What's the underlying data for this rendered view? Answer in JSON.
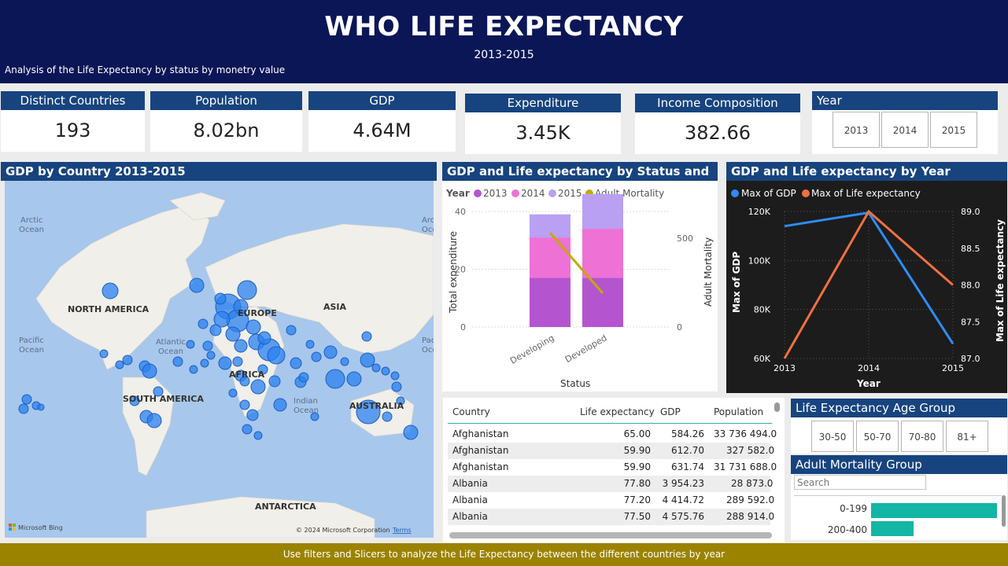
{
  "header": {
    "title": "WHO LIFE EXPECTANCY",
    "years": "2013-2015",
    "subtitle": "Analysis of the Life Expectancy by status by monetry value"
  },
  "kpis": [
    {
      "label": "Distinct Countries",
      "value": "193"
    },
    {
      "label": "Population",
      "value": "8.02bn"
    },
    {
      "label": "GDP",
      "value": "4.64M"
    },
    {
      "label": "Expenditure",
      "value": "3.45K"
    },
    {
      "label": "Income Composition",
      "value": "382.66"
    }
  ],
  "year_slicer": {
    "title": "Year",
    "options": [
      "2013",
      "2014",
      "2015"
    ]
  },
  "map": {
    "title": "GDP by Country 2013-2015",
    "labels": {
      "north_america": "NORTH AMERICA",
      "south_america": "SOUTH AMERICA",
      "europe": "EUROPE",
      "asia": "ASIA",
      "africa": "AFRICA",
      "australia": "AUSTRALIA",
      "antarctica": "ANTARCTICA",
      "arctic": "Arctic",
      "ocean": "Ocean",
      "pacific": "Pacific",
      "atlantic": "Atlantic",
      "indian": "Indian"
    },
    "attribution": "© 2024 Microsoft Corporation",
    "terms": "Terms",
    "bing": "Microsoft Bing"
  },
  "chart_status": {
    "title": "GDP and Life expectancy by Status and Year",
    "legend_title": "Year",
    "legend": [
      "2013",
      "2014",
      "2015",
      "Adult Mortality"
    ],
    "colors": [
      "#b455cf",
      "#ee71d6",
      "#b9a0f2",
      "#c4a90b"
    ],
    "xlabel": "Status",
    "ylabel_left": "Total expenditure",
    "ylabel_right": "Adult Mortality",
    "y_left_ticks": [
      "0",
      "20",
      "40"
    ],
    "y_right_ticks": [
      "0",
      "500"
    ]
  },
  "chart_year": {
    "title": "GDP and Life expectancy by Year",
    "legend": [
      "Max of GDP",
      "Max of Life expectancy"
    ],
    "colors": [
      "#2e8cf5",
      "#f07040"
    ],
    "xlabel": "Year",
    "ylabel_left": "Max of GDP",
    "ylabel_right": "Max of Life expectancy",
    "y_left_ticks": [
      "60K",
      "80K",
      "100K",
      "120K"
    ],
    "y_right_ticks": [
      "87.0",
      "87.5",
      "88.0",
      "88.5",
      "89.0"
    ],
    "x_ticks": [
      "2013",
      "2014",
      "2015"
    ]
  },
  "table": {
    "headers": [
      "Country",
      "Life expectancy",
      "GDP",
      "Population"
    ],
    "rows": [
      [
        "Afghanistan",
        "65.00",
        "584.26",
        "33 736 494.0"
      ],
      [
        "Afghanistan",
        "59.90",
        "612.70",
        "327 582.0"
      ],
      [
        "Afghanistan",
        "59.90",
        "631.74",
        "31 731 688.0"
      ],
      [
        "Albania",
        "77.80",
        "3 954.23",
        "28 873.0"
      ],
      [
        "Albania",
        "77.20",
        "4 414.72",
        "289 592.0"
      ],
      [
        "Albania",
        "77.50",
        "4 575.76",
        "288 914.0"
      ]
    ]
  },
  "age_group": {
    "title": "Life Expectancy Age Group",
    "options": [
      "30-50",
      "50-70",
      "70-80",
      "81+"
    ]
  },
  "mortality_group": {
    "title": "Adult Mortality Group",
    "search_placeholder": "Search",
    "bars": [
      {
        "label": "0-199",
        "value": 1.0
      },
      {
        "label": "200-400",
        "value": 0.34
      }
    ]
  },
  "footer": "Use filters and Slicers to analyze the Life Expectancy between the different countries by year",
  "chart_data": [
    {
      "type": "bar",
      "title": "GDP and Life expectancy by Status and Year",
      "categories": [
        "Developing",
        "Developed"
      ],
      "series": [
        {
          "name": "2013",
          "values": [
            17,
            17
          ]
        },
        {
          "name": "2014",
          "values": [
            14,
            17
          ]
        },
        {
          "name": "2015",
          "values": [
            8,
            12
          ]
        },
        {
          "name": "Adult Mortality",
          "values": [
            530,
            190
          ]
        }
      ],
      "stacked": true,
      "xlabel": "Status",
      "ylabel": "Total expenditure",
      "ylim": [
        0,
        40
      ],
      "y2label": "Adult Mortality",
      "y2lim": [
        0,
        650
      ]
    },
    {
      "type": "line",
      "title": "GDP and Life expectancy by Year",
      "x": [
        "2013",
        "2014",
        "2015"
      ],
      "series": [
        {
          "name": "Max of GDP",
          "values": [
            114000,
            119500,
            66000
          ]
        },
        {
          "name": "Max of Life expectancy",
          "values": [
            87.0,
            89.0,
            88.0
          ]
        }
      ],
      "xlabel": "Year",
      "ylabel": "Max of GDP",
      "ylim": [
        60000,
        120000
      ],
      "y2label": "Max of Life expectancy",
      "y2lim": [
        87.0,
        89.0
      ]
    }
  ]
}
